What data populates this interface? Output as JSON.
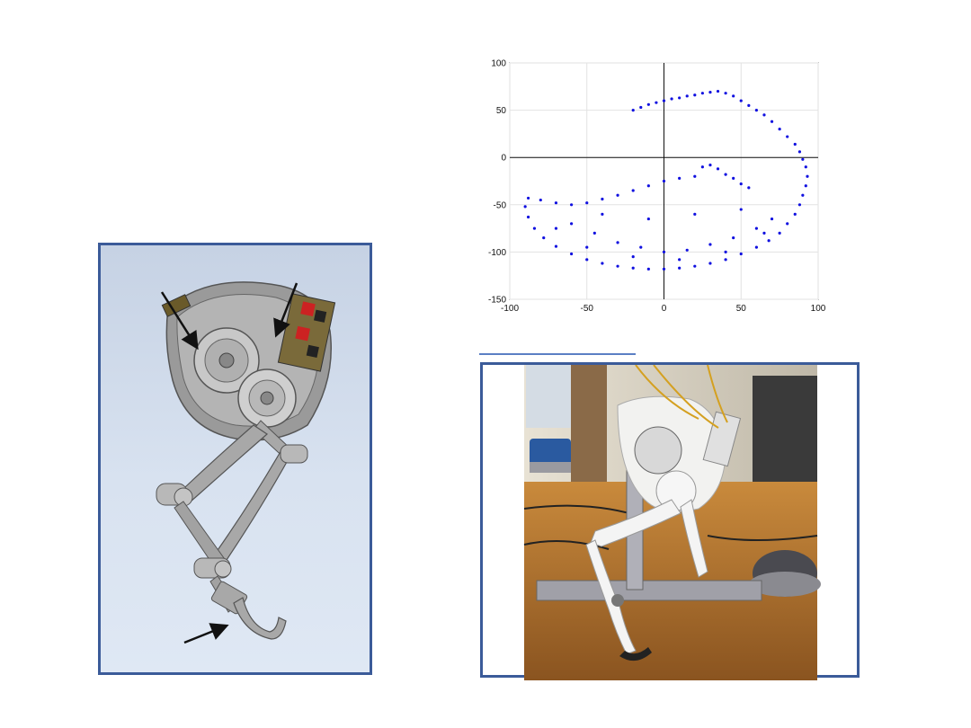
{
  "chart_data": {
    "type": "scatter",
    "title": "",
    "xlabel": "",
    "ylabel": "",
    "xlim": [
      -100,
      100
    ],
    "ylim": [
      -150,
      100
    ],
    "xticks": [
      -100,
      -50,
      0,
      50,
      100
    ],
    "yticks": [
      100,
      50,
      0,
      -50,
      -100,
      -150
    ],
    "grid": true,
    "marker_color": "#1010e0",
    "series": [
      {
        "values": [
          [
            -20,
            50
          ],
          [
            -15,
            53
          ],
          [
            -10,
            56
          ],
          [
            -5,
            58
          ],
          [
            0,
            60
          ],
          [
            5,
            62
          ],
          [
            10,
            63
          ],
          [
            15,
            65
          ],
          [
            20,
            66
          ],
          [
            25,
            68
          ],
          [
            30,
            69
          ],
          [
            35,
            70
          ],
          [
            40,
            68
          ],
          [
            45,
            65
          ],
          [
            50,
            60
          ],
          [
            55,
            55
          ],
          [
            60,
            50
          ],
          [
            65,
            45
          ],
          [
            70,
            38
          ],
          [
            75,
            30
          ],
          [
            80,
            22
          ],
          [
            85,
            14
          ],
          [
            88,
            6
          ],
          [
            90,
            -2
          ],
          [
            92,
            -10
          ],
          [
            93,
            -20
          ],
          [
            92,
            -30
          ],
          [
            90,
            -40
          ],
          [
            88,
            -50
          ],
          [
            85,
            -60
          ],
          [
            80,
            -70
          ],
          [
            75,
            -80
          ],
          [
            68,
            -88
          ],
          [
            60,
            -95
          ],
          [
            50,
            -102
          ],
          [
            40,
            -108
          ],
          [
            30,
            -112
          ],
          [
            20,
            -115
          ],
          [
            10,
            -117
          ],
          [
            0,
            -118
          ],
          [
            -10,
            -118
          ],
          [
            -20,
            -117
          ],
          [
            -30,
            -115
          ],
          [
            -40,
            -112
          ],
          [
            -50,
            -108
          ],
          [
            -60,
            -102
          ],
          [
            -70,
            -94
          ],
          [
            -78,
            -85
          ],
          [
            -84,
            -75
          ],
          [
            -88,
            -63
          ],
          [
            -90,
            -52
          ],
          [
            -88,
            -43
          ],
          [
            -80,
            -45
          ],
          [
            -70,
            -48
          ],
          [
            -60,
            -50
          ],
          [
            -50,
            -48
          ],
          [
            -40,
            -44
          ],
          [
            -30,
            -40
          ],
          [
            -20,
            -35
          ],
          [
            -10,
            -30
          ],
          [
            0,
            -25
          ],
          [
            10,
            -22
          ],
          [
            20,
            -20
          ],
          [
            25,
            -10
          ],
          [
            30,
            -8
          ],
          [
            35,
            -12
          ],
          [
            40,
            -18
          ],
          [
            45,
            -22
          ],
          [
            50,
            -28
          ],
          [
            55,
            -32
          ],
          [
            -60,
            -70
          ],
          [
            -45,
            -80
          ],
          [
            -30,
            -90
          ],
          [
            -15,
            -95
          ],
          [
            0,
            -100
          ],
          [
            15,
            -98
          ],
          [
            30,
            -92
          ],
          [
            45,
            -85
          ],
          [
            60,
            -75
          ],
          [
            70,
            -65
          ],
          [
            -70,
            -75
          ],
          [
            -50,
            -95
          ],
          [
            -20,
            -105
          ],
          [
            10,
            -108
          ],
          [
            40,
            -100
          ],
          [
            65,
            -80
          ],
          [
            -40,
            -60
          ],
          [
            -10,
            -65
          ],
          [
            20,
            -60
          ],
          [
            50,
            -55
          ]
        ]
      }
    ]
  }
}
